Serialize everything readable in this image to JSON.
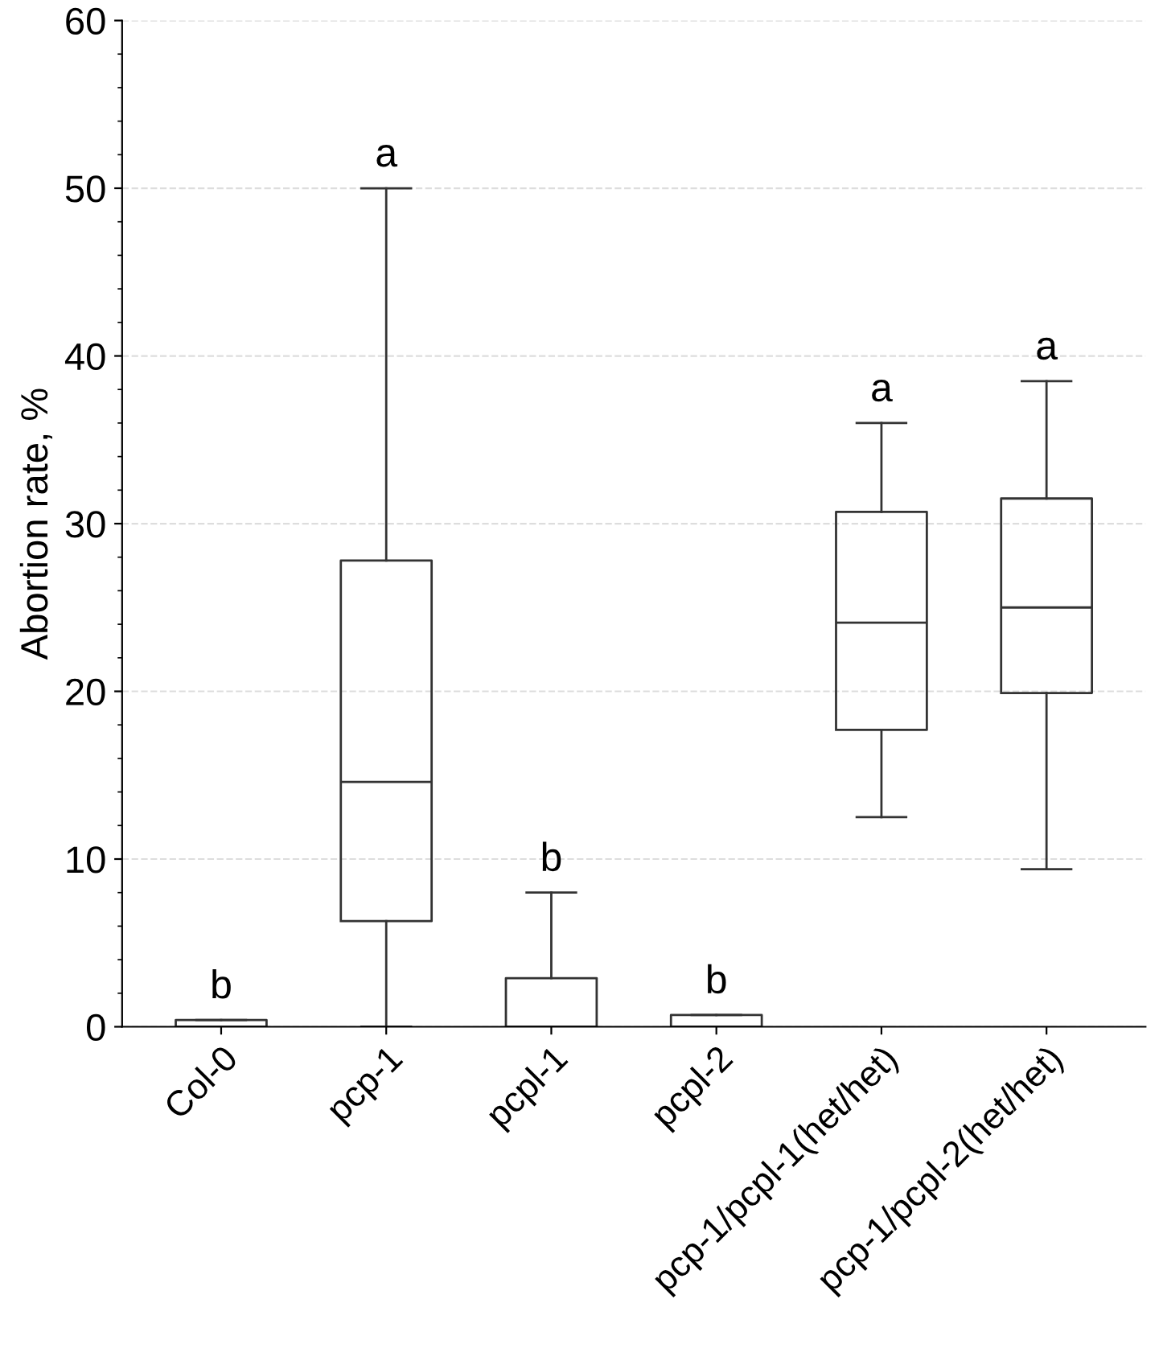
{
  "chart_data": {
    "type": "box",
    "ylabel": "Abortion rate, %",
    "categories": [
      "Col-0",
      "pcp-1",
      "pcpl-1",
      "pcpl-2",
      "pcp-1/pcpl-1(het/het)",
      "pcp-1/pcpl-2(het/het)"
    ],
    "boxes": [
      {
        "low": 0,
        "q1": 0,
        "median": 0,
        "q3": 0.4,
        "high": 0.4
      },
      {
        "low": 0,
        "q1": 6.3,
        "median": 14.6,
        "q3": 27.8,
        "high": 50
      },
      {
        "low": 0,
        "q1": 0,
        "median": 0,
        "q3": 2.9,
        "high": 8
      },
      {
        "low": 0,
        "q1": 0,
        "median": 0,
        "q3": 0.7,
        "high": 0.7
      },
      {
        "low": 12.5,
        "q1": 17.7,
        "median": 24.1,
        "q3": 30.7,
        "high": 36
      },
      {
        "low": 9.4,
        "q1": 19.9,
        "median": 25,
        "q3": 31.5,
        "high": 38.5
      }
    ],
    "ylim": [
      0,
      60
    ],
    "yticks": [
      0,
      10,
      20,
      30,
      40,
      50,
      60
    ],
    "grid": "y",
    "annotations": [
      "b",
      "a",
      "b",
      "b",
      "a",
      "a"
    ]
  }
}
